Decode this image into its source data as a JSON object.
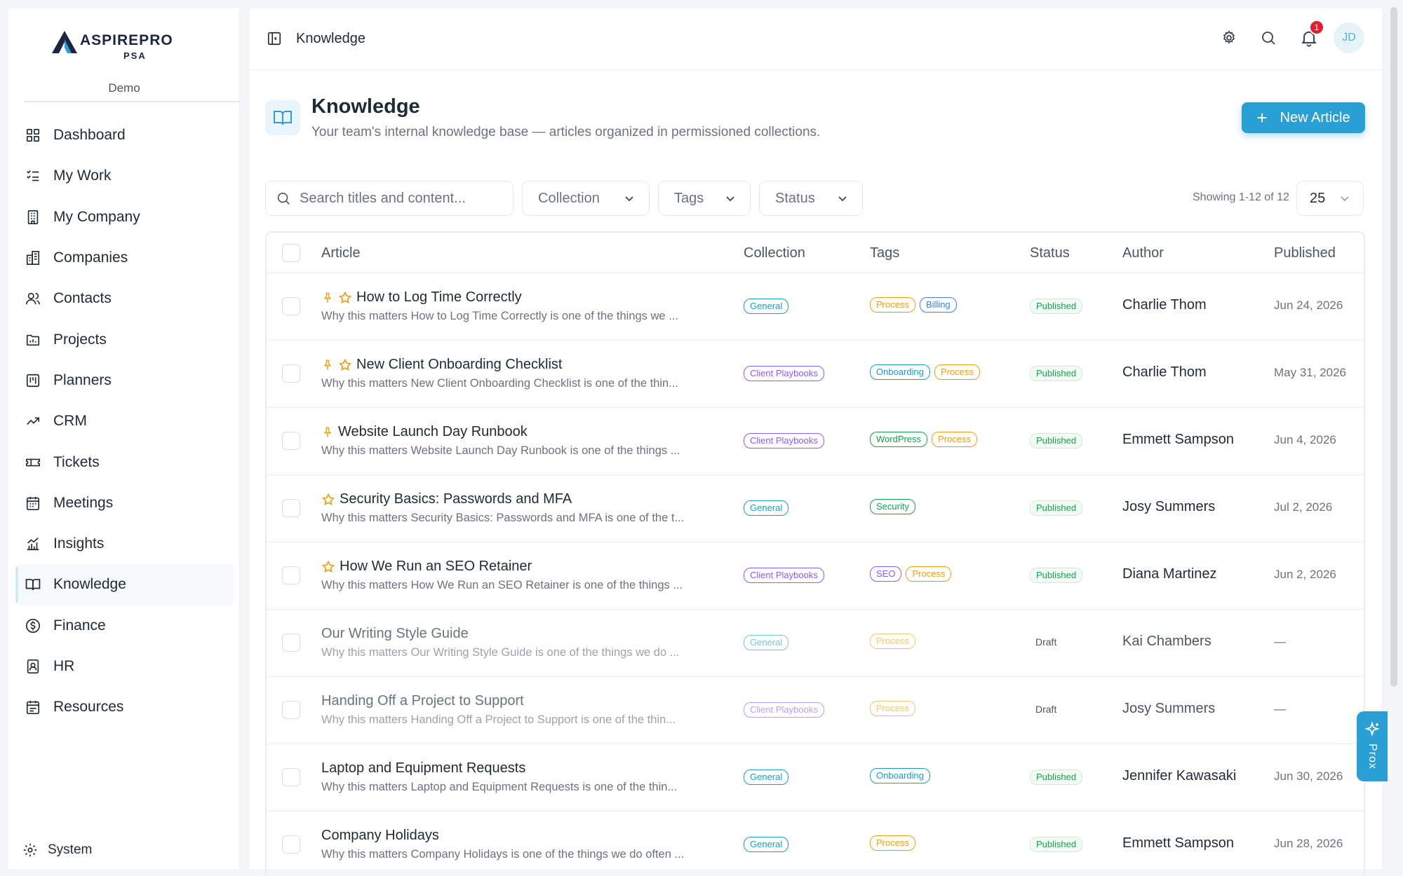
{
  "brand": {
    "name": "ASPIREPRO",
    "sub": "PSA",
    "workspace": "Demo"
  },
  "sidebar": {
    "items": [
      {
        "label": "Dashboard",
        "icon": "grid-icon"
      },
      {
        "label": "My Work",
        "icon": "checklist-icon"
      },
      {
        "label": "My Company",
        "icon": "building-icon"
      },
      {
        "label": "Companies",
        "icon": "buildings-icon"
      },
      {
        "label": "Contacts",
        "icon": "users-icon"
      },
      {
        "label": "Projects",
        "icon": "folder-chart-icon"
      },
      {
        "label": "Planners",
        "icon": "kanban-icon"
      },
      {
        "label": "CRM",
        "icon": "trending-up-icon"
      },
      {
        "label": "Tickets",
        "icon": "ticket-icon"
      },
      {
        "label": "Meetings",
        "icon": "calendar-icon"
      },
      {
        "label": "Insights",
        "icon": "chart-icon"
      },
      {
        "label": "Knowledge",
        "icon": "book-open-icon",
        "active": true
      },
      {
        "label": "Finance",
        "icon": "dollar-circle-icon"
      },
      {
        "label": "HR",
        "icon": "badge-user-icon"
      },
      {
        "label": "Resources",
        "icon": "calendar-grid-icon"
      }
    ],
    "system": "System"
  },
  "topbar": {
    "breadcrumb": "Knowledge",
    "notification_count": "1",
    "avatar": "JD"
  },
  "header": {
    "title": "Knowledge",
    "subtitle": "Your team's internal knowledge base — articles organized in permissioned collections.",
    "new_button": "New Article"
  },
  "filters": {
    "search_placeholder": "Search titles and content...",
    "collection": "Collection",
    "tags": "Tags",
    "status": "Status",
    "showing": "Showing 1-12 of 12",
    "per_page": "25"
  },
  "table": {
    "columns": [
      "Article",
      "Collection",
      "Tags",
      "Status",
      "Author",
      "Published"
    ],
    "rows": [
      {
        "title": "How to Log Time Correctly",
        "excerpt": "Why this matters How to Log Time Correctly is one of the things we ...",
        "pinned": true,
        "starred": true,
        "collection": "General",
        "tags": [
          "Process",
          "Billing"
        ],
        "status": "Published",
        "author": "Charlie Thom",
        "published": "Jun 24, 2026"
      },
      {
        "title": "New Client Onboarding Checklist",
        "excerpt": "Why this matters New Client Onboarding Checklist is one of the thin...",
        "pinned": true,
        "starred": true,
        "collection": "Client Playbooks",
        "tags": [
          "Onboarding",
          "Process"
        ],
        "status": "Published",
        "author": "Charlie Thom",
        "published": "May 31, 2026"
      },
      {
        "title": "Website Launch Day Runbook",
        "excerpt": "Why this matters Website Launch Day Runbook is one of the things ...",
        "pinned": true,
        "starred": false,
        "collection": "Client Playbooks",
        "tags": [
          "WordPress",
          "Process"
        ],
        "status": "Published",
        "author": "Emmett Sampson",
        "published": "Jun 4, 2026"
      },
      {
        "title": "Security Basics: Passwords and MFA",
        "excerpt": "Why this matters Security Basics: Passwords and MFA is one of the t...",
        "pinned": false,
        "starred": true,
        "collection": "General",
        "tags": [
          "Security"
        ],
        "status": "Published",
        "author": "Josy Summers",
        "published": "Jul 2, 2026"
      },
      {
        "title": "How We Run an SEO Retainer",
        "excerpt": "Why this matters How We Run an SEO Retainer is one of the things ...",
        "pinned": false,
        "starred": true,
        "collection": "Client Playbooks",
        "tags": [
          "SEO",
          "Process"
        ],
        "status": "Published",
        "author": "Diana Martinez",
        "published": "Jun 2, 2026"
      },
      {
        "title": "Our Writing Style Guide",
        "excerpt": "Why this matters Our Writing Style Guide is one of the things we do ...",
        "pinned": false,
        "starred": false,
        "collection": "General",
        "tags": [
          "Process"
        ],
        "status": "Draft",
        "author": "Kai Chambers",
        "published": "—"
      },
      {
        "title": "Handing Off a Project to Support",
        "excerpt": "Why this matters Handing Off a Project to Support is one of the thin...",
        "pinned": false,
        "starred": false,
        "collection": "Client Playbooks",
        "tags": [
          "Process"
        ],
        "status": "Draft",
        "author": "Josy Summers",
        "published": "—"
      },
      {
        "title": "Laptop and Equipment Requests",
        "excerpt": "Why this matters Laptop and Equipment Requests is one of the thin...",
        "pinned": false,
        "starred": false,
        "collection": "General",
        "tags": [
          "Onboarding"
        ],
        "status": "Published",
        "author": "Jennifer Kawasaki",
        "published": "Jun 30, 2026"
      },
      {
        "title": "Company Holidays",
        "excerpt": "Why this matters Company Holidays is one of the things we do often ...",
        "pinned": false,
        "starred": false,
        "collection": "General",
        "tags": [
          "Process"
        ],
        "status": "Published",
        "author": "Emmett Sampson",
        "published": "Jun 28, 2026"
      }
    ]
  },
  "tag_colors": {
    "General": "#1e9bc9",
    "Client Playbooks": "#8b5cf6",
    "Process": "#f59e0b",
    "Billing": "#3b82f6",
    "Onboarding": "#1e9bc9",
    "WordPress": "#16a34a",
    "Security": "#16a34a",
    "SEO": "#8b5cf6"
  },
  "assistant": {
    "label": "Prox"
  },
  "colors": {
    "accent": "#2a9fd4",
    "published": "#16a34a",
    "badge": "#e11d2e"
  }
}
